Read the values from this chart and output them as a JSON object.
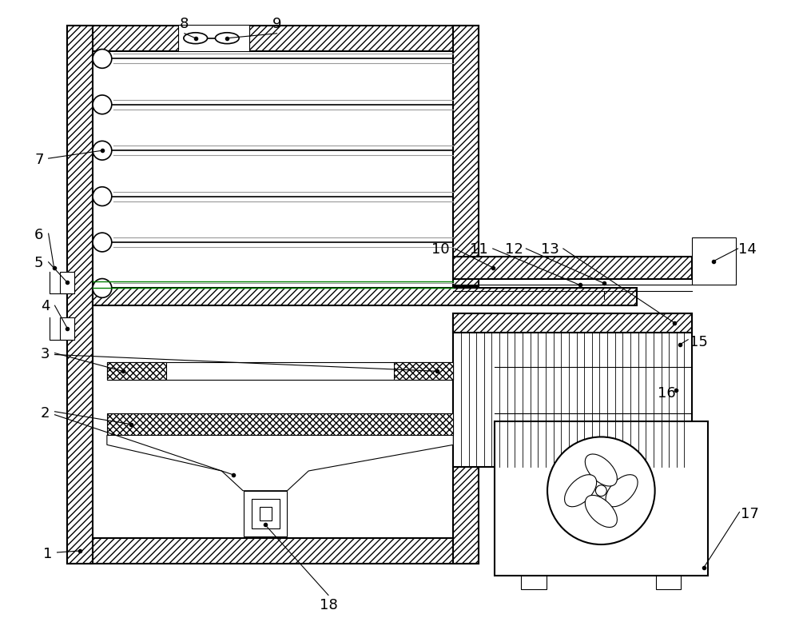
{
  "bg_color": "#ffffff",
  "line_color": "#000000",
  "fig_width": 10.0,
  "fig_height": 7.98,
  "lw_main": 1.5,
  "lw_thin": 0.8,
  "hatch_density": "////",
  "cross_hatch": "xxxx"
}
